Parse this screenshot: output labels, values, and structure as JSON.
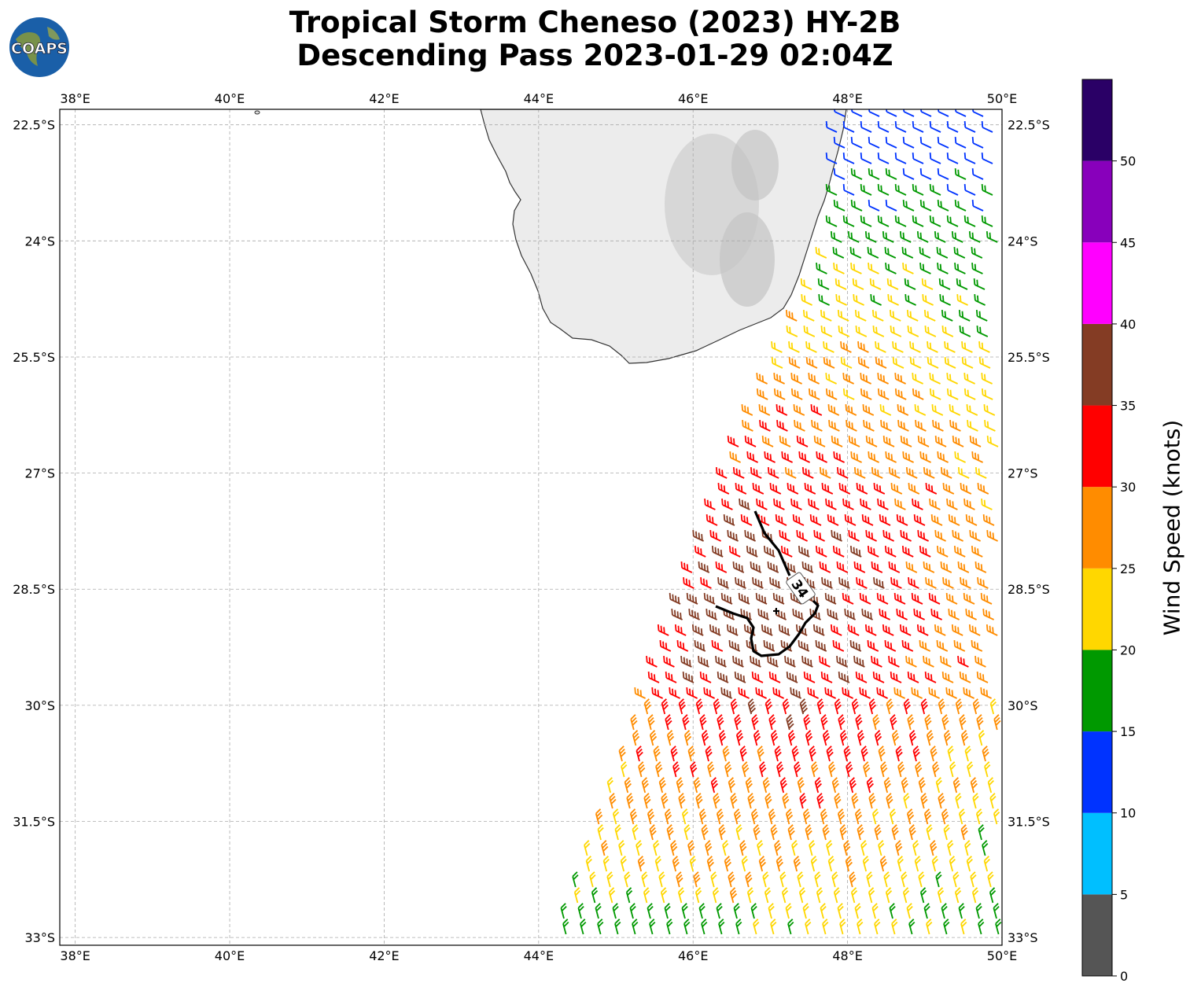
{
  "title": {
    "line1": "Tropical Storm Cheneso (2023) HY-2B",
    "line2": "Descending Pass 2023-01-29 02:04Z"
  },
  "logo": {
    "text": "COAPS",
    "icon": "globe-icon"
  },
  "map": {
    "lon_range": [
      37.8,
      50.0
    ],
    "lat_range": [
      -33.1,
      -22.3
    ],
    "lon_labels": [
      "38°E",
      "40°E",
      "42°E",
      "44°E",
      "46°E",
      "48°E",
      "50°E"
    ],
    "lon_values": [
      38,
      40,
      42,
      44,
      46,
      48,
      50
    ],
    "lat_labels": [
      "22.5°S",
      "24°S",
      "25.5°S",
      "27°S",
      "28.5°S",
      "30°S",
      "31.5°S",
      "33°S"
    ],
    "lat_values": [
      -22.5,
      -24,
      -25.5,
      -27,
      -28.5,
      -30,
      -31.5,
      -33
    ],
    "grid": true,
    "land": "Madagascar (southern tip), grayscale elevation",
    "contour_label": "34",
    "storm_center": {
      "lon": 47.05,
      "lat": -28.8
    }
  },
  "colorbar": {
    "label": "Wind Speed (knots)",
    "ticks": [
      "0",
      "5",
      "10",
      "15",
      "20",
      "25",
      "30",
      "35",
      "40",
      "45",
      "50"
    ],
    "tick_values": [
      0,
      5,
      10,
      15,
      20,
      25,
      30,
      35,
      40,
      45,
      50
    ],
    "bins": [
      {
        "from": 0,
        "to": 5,
        "color": "#555555"
      },
      {
        "from": 5,
        "to": 10,
        "color": "#00bfff"
      },
      {
        "from": 10,
        "to": 15,
        "color": "#0033ff"
      },
      {
        "from": 15,
        "to": 20,
        "color": "#009900"
      },
      {
        "from": 20,
        "to": 25,
        "color": "#ffd700"
      },
      {
        "from": 25,
        "to": 30,
        "color": "#ff8c00"
      },
      {
        "from": 30,
        "to": 35,
        "color": "#ff0000"
      },
      {
        "from": 35,
        "to": 40,
        "color": "#843c24"
      },
      {
        "from": 40,
        "to": 45,
        "color": "#ff00ff"
      },
      {
        "from": 45,
        "to": 50,
        "color": "#8800bb"
      },
      {
        "from": 50,
        "to": 55,
        "color": "#2a0066"
      }
    ]
  }
}
